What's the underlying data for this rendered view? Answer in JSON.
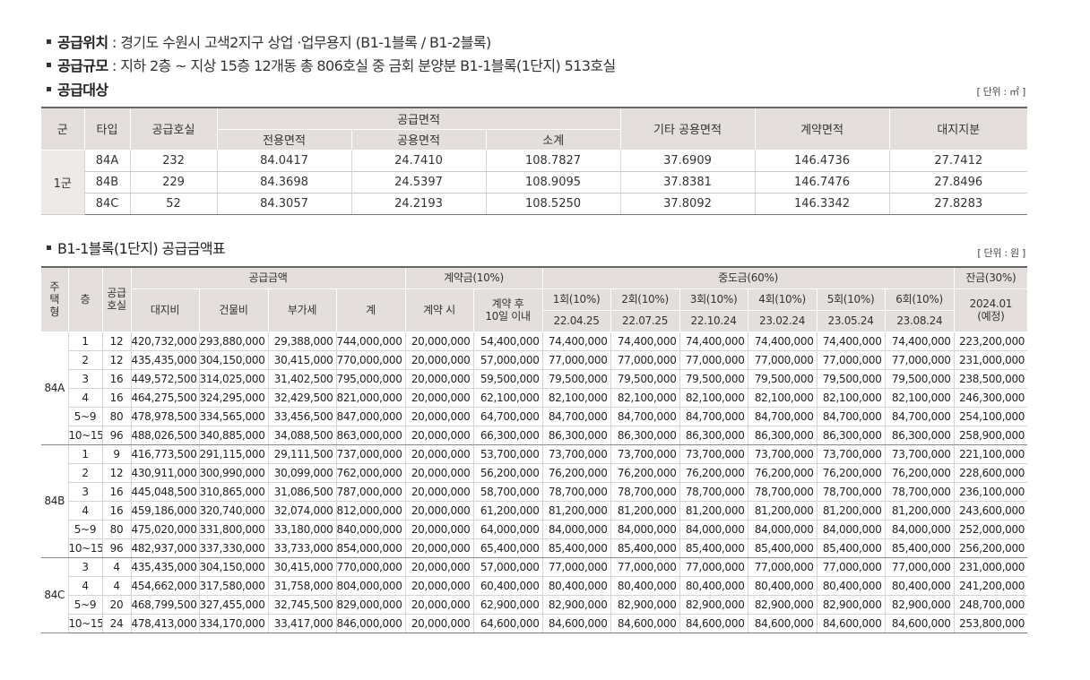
{
  "info": {
    "location_label": "공급위치",
    "location_value": " : 경기도 수원시 고색2지구 상업 ·업무용지 (B1-1블록 / B1-2블록)",
    "scale_label": "공급규모",
    "scale_value": " : 지하 2층 ~ 지상 15층 12개동 총 806호실 중 금회 분양분 B1-1블록(1단지) 513호실",
    "target_label": "공급대상"
  },
  "area_table": {
    "unit": "[ 단위 : ㎡ ]",
    "headers": {
      "group": "군",
      "type": "타입",
      "units": "공급호실",
      "supply_area": "공급면적",
      "exclusive": "전용면적",
      "common": "공용면적",
      "subtotal": "소계",
      "other_common": "기타 공용면적",
      "contract_area": "계약면적",
      "land_share": "대지지분"
    },
    "group_name": "1군",
    "rows": [
      [
        "84A",
        "232",
        "84.0417",
        "24.7410",
        "108.7827",
        "37.6909",
        "146.4736",
        "27.7412"
      ],
      [
        "84B",
        "229",
        "84.3698",
        "24.5397",
        "108.9095",
        "37.8381",
        "146.7476",
        "27.8496"
      ],
      [
        "84C",
        "52",
        "84.3057",
        "24.2193",
        "108.5250",
        "37.8092",
        "146.3342",
        "27.8283"
      ]
    ]
  },
  "price_section": {
    "title": "B1-1블록(1단지) 공급금액표",
    "unit": "[ 단위 : 원 ]"
  },
  "price_table": {
    "headers": {
      "house_type": "주\n택\n형",
      "floor": "층",
      "units": "공급\n호실",
      "supply_price": "공급금액",
      "land": "대지비",
      "building": "건물비",
      "vat": "부가세",
      "total": "계",
      "deposit": "계약금(10%)",
      "at_contract": "계약 시",
      "after_contract": "계약 후\n10일 이내",
      "middle": "중도금(60%)",
      "balance": "잔금(30%)",
      "balance_date": "2024.01\n(예정)"
    },
    "installments": [
      {
        "label": "1회(10%)",
        "date": "22.04.25"
      },
      {
        "label": "2회(10%)",
        "date": "22.07.25"
      },
      {
        "label": "3회(10%)",
        "date": "22.10.24"
      },
      {
        "label": "4회(10%)",
        "date": "23.02.24"
      },
      {
        "label": "5회(10%)",
        "date": "23.05.24"
      },
      {
        "label": "6회(10%)",
        "date": "23.08.24"
      }
    ],
    "groups": [
      {
        "type": "84A",
        "rows": [
          [
            "1",
            "12",
            "420,732,000",
            "293,880,000",
            "29,388,000",
            "744,000,000",
            "20,000,000",
            "54,400,000",
            "74,400,000",
            "74,400,000",
            "74,400,000",
            "74,400,000",
            "74,400,000",
            "74,400,000",
            "223,200,000"
          ],
          [
            "2",
            "12",
            "435,435,000",
            "304,150,000",
            "30,415,000",
            "770,000,000",
            "20,000,000",
            "57,000,000",
            "77,000,000",
            "77,000,000",
            "77,000,000",
            "77,000,000",
            "77,000,000",
            "77,000,000",
            "231,000,000"
          ],
          [
            "3",
            "16",
            "449,572,500",
            "314,025,000",
            "31,402,500",
            "795,000,000",
            "20,000,000",
            "59,500,000",
            "79,500,000",
            "79,500,000",
            "79,500,000",
            "79,500,000",
            "79,500,000",
            "79,500,000",
            "238,500,000"
          ],
          [
            "4",
            "16",
            "464,275,500",
            "324,295,000",
            "32,429,500",
            "821,000,000",
            "20,000,000",
            "62,100,000",
            "82,100,000",
            "82,100,000",
            "82,100,000",
            "82,100,000",
            "82,100,000",
            "82,100,000",
            "246,300,000"
          ],
          [
            "5~9",
            "80",
            "478,978,500",
            "334,565,000",
            "33,456,500",
            "847,000,000",
            "20,000,000",
            "64,700,000",
            "84,700,000",
            "84,700,000",
            "84,700,000",
            "84,700,000",
            "84,700,000",
            "84,700,000",
            "254,100,000"
          ],
          [
            "10~15",
            "96",
            "488,026,500",
            "340,885,000",
            "34,088,500",
            "863,000,000",
            "20,000,000",
            "66,300,000",
            "86,300,000",
            "86,300,000",
            "86,300,000",
            "86,300,000",
            "86,300,000",
            "86,300,000",
            "258,900,000"
          ]
        ]
      },
      {
        "type": "84B",
        "rows": [
          [
            "1",
            "9",
            "416,773,500",
            "291,115,000",
            "29,111,500",
            "737,000,000",
            "20,000,000",
            "53,700,000",
            "73,700,000",
            "73,700,000",
            "73,700,000",
            "73,700,000",
            "73,700,000",
            "73,700,000",
            "221,100,000"
          ],
          [
            "2",
            "12",
            "430,911,000",
            "300,990,000",
            "30,099,000",
            "762,000,000",
            "20,000,000",
            "56,200,000",
            "76,200,000",
            "76,200,000",
            "76,200,000",
            "76,200,000",
            "76,200,000",
            "76,200,000",
            "228,600,000"
          ],
          [
            "3",
            "16",
            "445,048,500",
            "310,865,000",
            "31,086,500",
            "787,000,000",
            "20,000,000",
            "58,700,000",
            "78,700,000",
            "78,700,000",
            "78,700,000",
            "78,700,000",
            "78,700,000",
            "78,700,000",
            "236,100,000"
          ],
          [
            "4",
            "16",
            "459,186,000",
            "320,740,000",
            "32,074,000",
            "812,000,000",
            "20,000,000",
            "61,200,000",
            "81,200,000",
            "81,200,000",
            "81,200,000",
            "81,200,000",
            "81,200,000",
            "81,200,000",
            "243,600,000"
          ],
          [
            "5~9",
            "80",
            "475,020,000",
            "331,800,000",
            "33,180,000",
            "840,000,000",
            "20,000,000",
            "64,000,000",
            "84,000,000",
            "84,000,000",
            "84,000,000",
            "84,000,000",
            "84,000,000",
            "84,000,000",
            "252,000,000"
          ],
          [
            "10~15",
            "96",
            "482,937,000",
            "337,330,000",
            "33,733,000",
            "854,000,000",
            "20,000,000",
            "65,400,000",
            "85,400,000",
            "85,400,000",
            "85,400,000",
            "85,400,000",
            "85,400,000",
            "85,400,000",
            "256,200,000"
          ]
        ]
      },
      {
        "type": "84C",
        "rows": [
          [
            "3",
            "4",
            "435,435,000",
            "304,150,000",
            "30,415,000",
            "770,000,000",
            "20,000,000",
            "57,000,000",
            "77,000,000",
            "77,000,000",
            "77,000,000",
            "77,000,000",
            "77,000,000",
            "77,000,000",
            "231,000,000"
          ],
          [
            "4",
            "4",
            "454,662,000",
            "317,580,000",
            "31,758,000",
            "804,000,000",
            "20,000,000",
            "60,400,000",
            "80,400,000",
            "80,400,000",
            "80,400,000",
            "80,400,000",
            "80,400,000",
            "80,400,000",
            "241,200,000"
          ],
          [
            "5~9",
            "20",
            "468,799,500",
            "327,455,000",
            "32,745,500",
            "829,000,000",
            "20,000,000",
            "62,900,000",
            "82,900,000",
            "82,900,000",
            "82,900,000",
            "82,900,000",
            "82,900,000",
            "82,900,000",
            "248,700,000"
          ],
          [
            "10~15",
            "24",
            "478,413,000",
            "334,170,000",
            "33,417,000",
            "846,000,000",
            "20,000,000",
            "64,600,000",
            "84,600,000",
            "84,600,000",
            "84,600,000",
            "84,600,000",
            "84,600,000",
            "84,600,000",
            "253,800,000"
          ]
        ]
      }
    ]
  }
}
